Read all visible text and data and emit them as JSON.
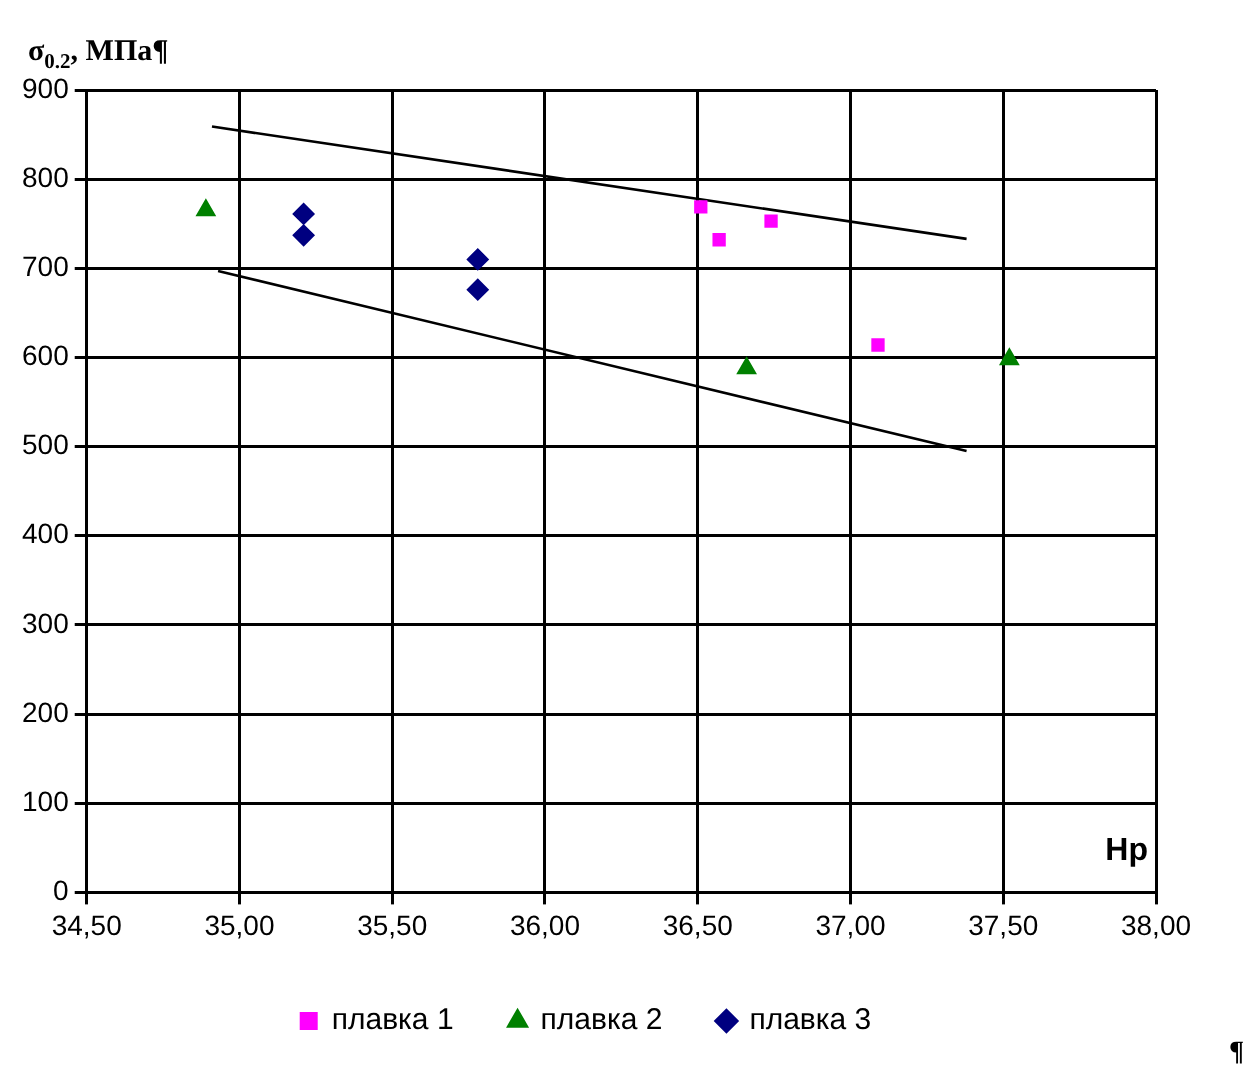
{
  "chart_data": {
    "type": "scatter",
    "ylabel": "σ$_{0.2}$, МПа¶",
    "xlabel": "Hp",
    "xlim": [
      34.5,
      38
    ],
    "xticks": [
      {
        "value": 34.5,
        "label": "34,50"
      },
      {
        "value": 35,
        "label": "35,00"
      },
      {
        "value": 35.5,
        "label": "35,50"
      },
      {
        "value": 36,
        "label": "36,00"
      },
      {
        "value": 36.5,
        "label": "36,50"
      },
      {
        "value": 37,
        "label": "37,00"
      },
      {
        "value": 37.5,
        "label": "37,50"
      },
      {
        "value": 38,
        "label": "38,00"
      }
    ],
    "ylim": [
      0,
      900
    ],
    "yticks": [
      0,
      100,
      200,
      300,
      400,
      500,
      600,
      700,
      800,
      900
    ],
    "grid": true,
    "legend": "bottom",
    "series": [
      {
        "name": "плавка 1",
        "color": "#ff00ff",
        "marker": "square",
        "x": [
          36.51,
          36.57,
          36.74,
          37.09
        ],
        "values": [
          769,
          732,
          753,
          614
        ]
      },
      {
        "name": "плавка 2",
        "color": "#008000",
        "marker": "triangle",
        "x": [
          34.89,
          36.66,
          37.52
        ],
        "values": [
          765,
          588,
          598
        ]
      },
      {
        "name": "плавка 3",
        "color": "#000080",
        "marker": "diamond",
        "x": [
          35.21,
          35.21,
          35.78,
          35.78
        ],
        "values": [
          761,
          737,
          710,
          676
        ]
      },
      {
        "type": "line",
        "color": "#000000",
        "marker": "none",
        "x": [
          34.91,
          37.38
        ],
        "values": [
          859,
          733
        ]
      },
      {
        "type": "line",
        "color": "#000000",
        "marker": "none",
        "x": [
          34.93,
          37.38
        ],
        "values": [
          697,
          495
        ]
      }
    ],
    "annotations": [
      "¶"
    ]
  }
}
